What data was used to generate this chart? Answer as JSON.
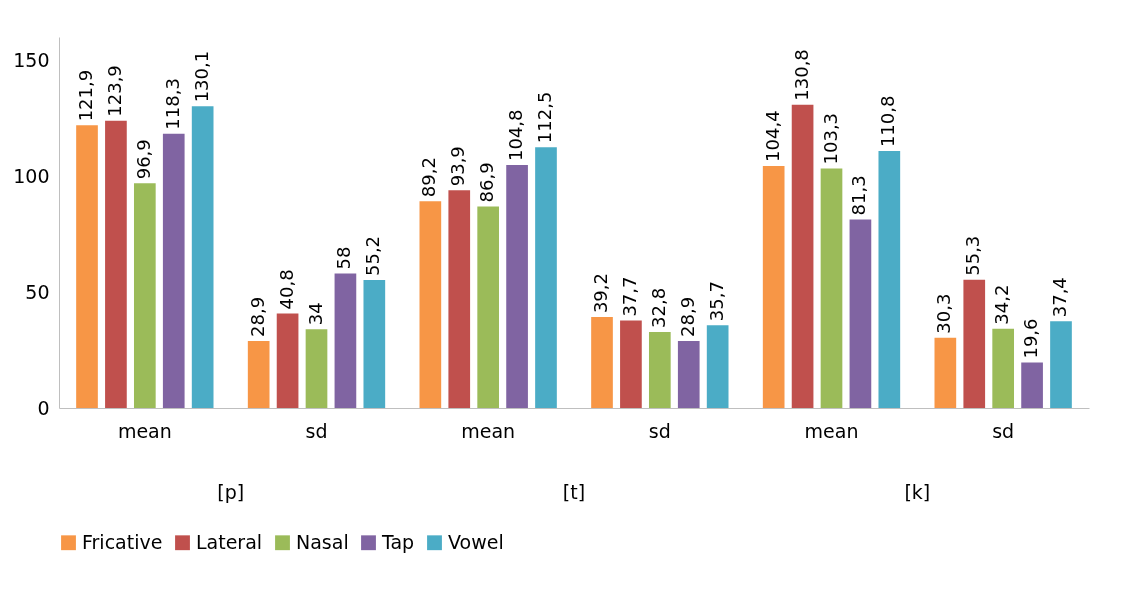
{
  "chart_data": {
    "type": "bar",
    "categories": [
      "mean",
      "sd",
      "mean",
      "sd",
      "mean",
      "sd"
    ],
    "annotations": [
      "[p]",
      "[t]",
      "[k]"
    ],
    "ylim": [
      0,
      160
    ],
    "yticks": [
      0,
      50,
      100,
      150
    ],
    "grid": false,
    "legend": "bottom",
    "series": [
      {
        "name": "Fricative",
        "color": "#f79646",
        "values": [
          121.9,
          28.9,
          89.2,
          39.2,
          104.4,
          30.3
        ],
        "value_labels": [
          "121,9",
          "28,9",
          "89,2",
          "39,2",
          "104,4",
          "30,3"
        ]
      },
      {
        "name": "Lateral",
        "color": "#c0504d",
        "values": [
          123.9,
          40.8,
          93.9,
          37.7,
          130.8,
          55.3
        ],
        "value_labels": [
          "123,9",
          "40,8",
          "93,9",
          "37,7",
          "130,8",
          "55,3"
        ]
      },
      {
        "name": "Nasal",
        "color": "#9bbb59",
        "values": [
          96.9,
          34,
          86.9,
          32.8,
          103.3,
          34.2
        ],
        "value_labels": [
          "96,9",
          "34",
          "86,9",
          "32,8",
          "103,3",
          "34,2"
        ]
      },
      {
        "name": "Tap",
        "color": "#8064a2",
        "values": [
          118.3,
          58,
          104.8,
          28.9,
          81.3,
          19.6
        ],
        "value_labels": [
          "118,3",
          "58",
          "104,8",
          "28,9",
          "81,3",
          "19,6"
        ]
      },
      {
        "name": "Vowel",
        "color": "#4bacc6",
        "values": [
          130.1,
          55.2,
          112.5,
          35.7,
          110.8,
          37.4
        ],
        "value_labels": [
          "130,1",
          "55,2",
          "112,5",
          "35,7",
          "110,8",
          "37,4"
        ]
      }
    ]
  }
}
